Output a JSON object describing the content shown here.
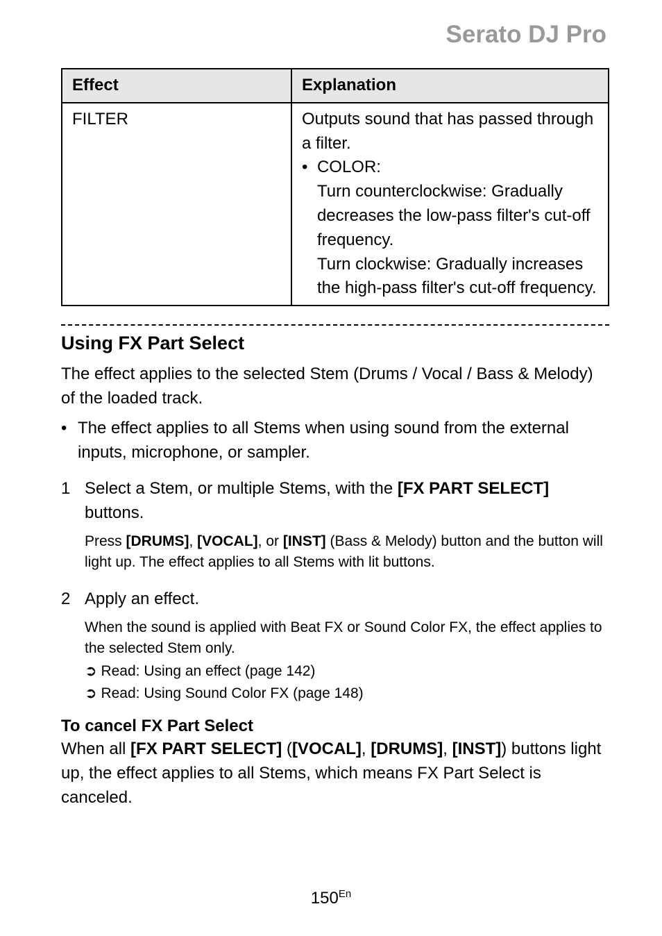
{
  "header": {
    "title": "Serato DJ Pro"
  },
  "table": {
    "headers": {
      "effect": "Effect",
      "explanation": "Explanation"
    },
    "row": {
      "effect": "FILTER",
      "line1": "Outputs sound that has passed through a filter.",
      "bullet_label": "COLOR:",
      "line2": "Turn counterclockwise: Gradually decreases the low-pass filter's cut-off frequency.",
      "line3": "Turn clockwise: Gradually increases the high-pass filter's cut-off frequency."
    }
  },
  "section": {
    "title": "Using FX Part Select",
    "intro": "The effect applies to the selected Stem (Drums / Vocal / Bass & Melody) of the loaded track.",
    "bullet": "The effect applies to all Stems when using sound from the external inputs, microphone, or sampler.",
    "step1_pre": "Select a Stem, or multiple Stems, with the ",
    "step1_bold": "[FX PART SELECT]",
    "step1_post": " buttons.",
    "step1_sub_pre": "Press ",
    "step1_sub_b1": "[DRUMS]",
    "step1_sub_m1": ", ",
    "step1_sub_b2": "[VOCAL]",
    "step1_sub_m2": ", or ",
    "step1_sub_b3": "[INST]",
    "step1_sub_post": " (Bass & Melody) button and the button will light up. The effect applies to all Stems with lit buttons.",
    "step2": "Apply an effect.",
    "step2_sub1": "When the sound is applied with Beat FX or Sound Color FX, the effect applies to the selected Stem only.",
    "step2_sub2": " Read: Using an effect (page 142)",
    "step2_sub3": " Read: Using Sound Color FX (page 148)",
    "cancel_heading": "To cancel FX Part Select",
    "cancel_pre": "When all ",
    "cancel_b1": "[FX PART SELECT]",
    "cancel_m1": " (",
    "cancel_b2": "[VOCAL]",
    "cancel_m2": ", ",
    "cancel_b3": "[DRUMS]",
    "cancel_m3": ", ",
    "cancel_b4": "[INST]",
    "cancel_post": ") buttons light up, the effect applies to all Stems, which means FX Part Select is canceled."
  },
  "footer": {
    "page": "150",
    "lang": "En"
  },
  "glyphs": {
    "arrow": "➲",
    "bullet": "•"
  }
}
